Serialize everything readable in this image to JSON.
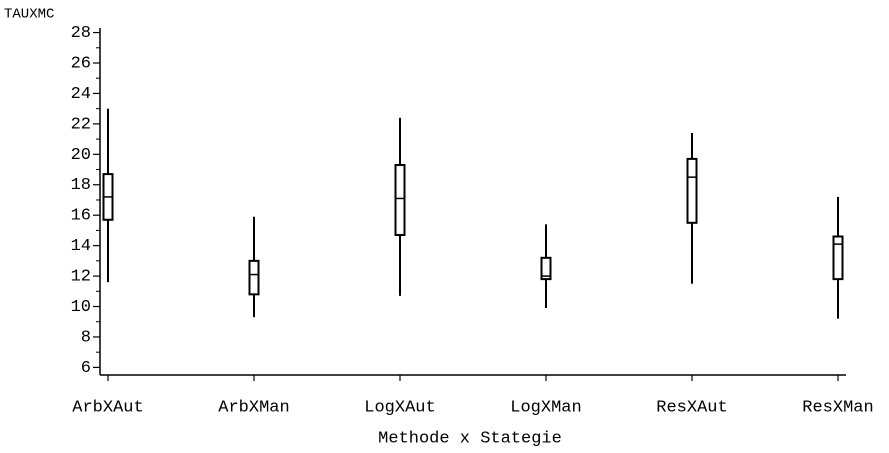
{
  "chart_data": {
    "type": "box",
    "y_label": "TAUXMC",
    "x_label": "Methode x Stategie",
    "categories": [
      "ArbXAut",
      "ArbXMan",
      "LogXAut",
      "LogXMan",
      "ResXAut",
      "ResXMan"
    ],
    "min": [
      11.6,
      9.3,
      10.7,
      9.9,
      11.5,
      9.2
    ],
    "q1": [
      15.7,
      10.8,
      14.7,
      11.8,
      15.5,
      11.8
    ],
    "median": [
      17.2,
      12.1,
      17.1,
      12.0,
      18.5,
      14.1
    ],
    "q3": [
      18.7,
      13.0,
      19.3,
      13.2,
      19.7,
      14.6
    ],
    "max": [
      23.0,
      15.9,
      22.4,
      15.4,
      21.4,
      17.2
    ],
    "color": "#000000",
    "ylim": [
      5.5,
      28.3
    ],
    "yticks": [
      6,
      8,
      10,
      12,
      14,
      16,
      18,
      20,
      22,
      24,
      26,
      28
    ],
    "yminor": [
      7,
      9,
      11,
      13,
      15,
      17,
      19,
      21,
      23,
      25,
      27
    ]
  }
}
